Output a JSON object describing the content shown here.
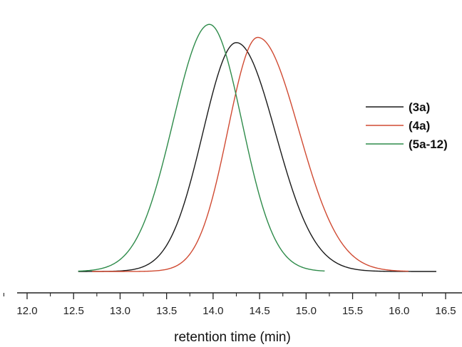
{
  "chart_data": {
    "type": "line",
    "title": "",
    "xlabel": "retention time (min)",
    "ylabel": "",
    "xlim": [
      12.0,
      16.7
    ],
    "x_ticks": [
      "12.0",
      "12.5",
      "13.0",
      "13.5",
      "14.0",
      "14.5",
      "15.0",
      "15.5",
      "16.0",
      "16.5"
    ],
    "y_axis_visible": false,
    "grid": false,
    "legend_position": "right",
    "series": [
      {
        "name": "(3a)",
        "color": "#1a1a1a",
        "peak_x": 14.25,
        "peak_height": 0.88,
        "sigma_left": 0.36,
        "sigma_right": 0.42,
        "x_start": 12.55,
        "x_end": 16.4
      },
      {
        "name": "(4a)",
        "color": "#d04a32",
        "peak_x": 14.48,
        "peak_height": 0.9,
        "sigma_left": 0.32,
        "sigma_right": 0.44,
        "x_start": 12.7,
        "x_end": 16.1
      },
      {
        "name": "(5a-12)",
        "color": "#2e8b4a",
        "peak_x": 13.96,
        "peak_height": 0.95,
        "sigma_left": 0.39,
        "sigma_right": 0.35,
        "x_start": 12.55,
        "x_end": 15.2
      }
    ]
  }
}
